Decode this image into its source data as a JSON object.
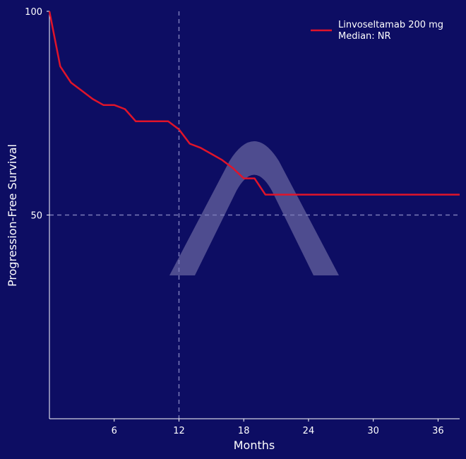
{
  "colors": {
    "background": "#0d0d63",
    "line": "#e0142a",
    "axis": "#ffffff",
    "reference": "#7a7ab8",
    "watermark": "#5a5896"
  },
  "chart_data": {
    "type": "line",
    "xlabel": "Months",
    "ylabel": "Progression-Free Survival",
    "xlim": [
      0,
      38
    ],
    "ylim": [
      0,
      100
    ],
    "xticks": [
      6,
      12,
      18,
      24,
      30,
      36
    ],
    "yticks": [
      50,
      100
    ],
    "grid": false,
    "reference_lines": {
      "x": 12,
      "y": 50,
      "style": "dashed"
    },
    "legend": {
      "position": "top-right",
      "entries": [
        {
          "label": "Linvoseltamab 200 mg",
          "sublabel": "Median: NR"
        }
      ]
    },
    "series": [
      {
        "name": "Linvoseltamab 200 mg",
        "x": [
          0,
          1,
          2,
          3,
          4,
          5,
          6,
          7,
          8,
          9,
          10,
          11,
          12,
          13,
          14,
          15,
          16,
          17,
          18,
          19,
          20,
          21,
          38
        ],
        "y": [
          100,
          86.5,
          82.5,
          80.5,
          78.5,
          77,
          77,
          76,
          73,
          73,
          73,
          73,
          71,
          67.5,
          66.5,
          65,
          63.5,
          61.5,
          59,
          59,
          55,
          55,
          55
        ]
      }
    ]
  }
}
